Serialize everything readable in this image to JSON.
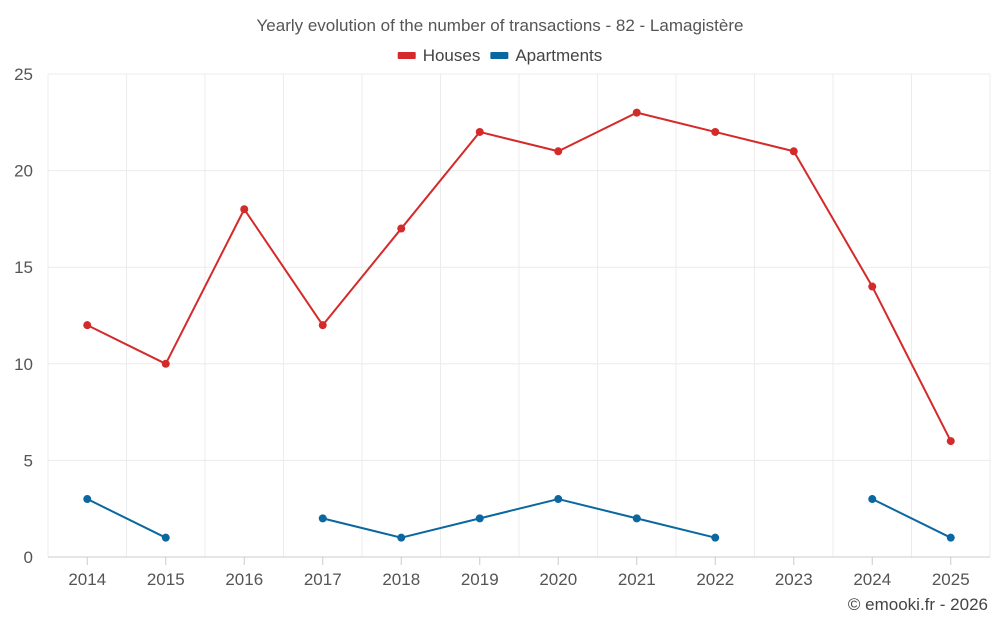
{
  "chart_data": {
    "type": "line",
    "title": "Yearly evolution of the number of transactions - 82 - Lamagistère",
    "xlabel": "",
    "ylabel": "",
    "categories": [
      "2014",
      "2015",
      "2016",
      "2017",
      "2018",
      "2019",
      "2020",
      "2021",
      "2022",
      "2023",
      "2024",
      "2025"
    ],
    "ylim": [
      0,
      25
    ],
    "yticks": [
      0,
      5,
      10,
      15,
      20,
      25
    ],
    "grid": true,
    "legend_position": "top-center",
    "series": [
      {
        "name": "Houses",
        "color": "#d42a2a",
        "values": [
          12,
          10,
          18,
          12,
          17,
          22,
          21,
          23,
          22,
          21,
          14,
          6
        ]
      },
      {
        "name": "Apartments",
        "color": "#0b67a0",
        "values": [
          3,
          1,
          null,
          2,
          1,
          2,
          3,
          2,
          1,
          null,
          3,
          1
        ]
      }
    ]
  },
  "credit": "© emooki.fr - 2026"
}
